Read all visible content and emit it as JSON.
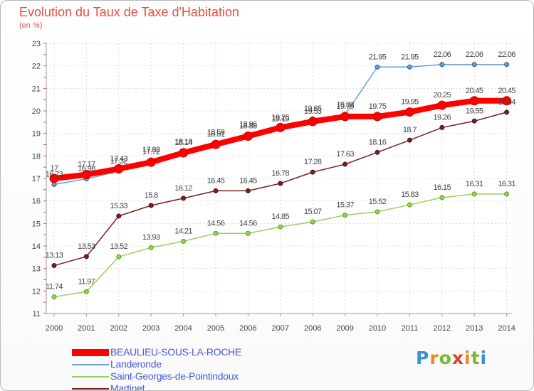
{
  "title": "Evolution du Taux de Taxe d'Habitation",
  "unit_label": "(en %)",
  "logo_text": "Proxiti",
  "chart_data": {
    "type": "line",
    "title": "Evolution du Taux de Taxe d'Habitation",
    "ylabel": "(en %)",
    "xlabel": "",
    "x": [
      "2000",
      "2001",
      "2002",
      "2003",
      "2004",
      "2005",
      "2006",
      "2007",
      "2008",
      "2009",
      "2010",
      "2011",
      "2012",
      "2013",
      "2014"
    ],
    "ylim": [
      11,
      23
    ],
    "yticks": [
      11,
      12,
      13,
      14,
      15,
      16,
      17,
      18,
      19,
      20,
      21,
      22,
      23
    ],
    "grid": true,
    "legend_position": "bottom-left",
    "series": [
      {
        "name": "BEAULIEU-SOUS-LA-ROCHE",
        "color": "#ff0000",
        "values": [
          17,
          17.17,
          17.43,
          17.72,
          18.14,
          18.51,
          18.88,
          19.26,
          19.53,
          19.75,
          19.75,
          19.95,
          20.25,
          20.45,
          20.45
        ],
        "labels": [
          "17",
          "17.17",
          "17.43",
          "17.72",
          "18.14",
          "18.51",
          "18.88",
          "19.26",
          "19.53",
          "19.75",
          "19.75",
          "19.95",
          "20.25",
          "20.45",
          "20.45"
        ]
      },
      {
        "name": "Landeronde",
        "color": "#6a9fd6",
        "values": [
          16.73,
          16.98,
          17.32,
          17.82,
          18.18,
          18.59,
          18.96,
          19.19,
          19.65,
          19.83,
          21.95,
          21.95,
          22.06,
          22.06,
          22.06
        ],
        "labels": [
          "16.73",
          "16.98",
          "17.32",
          "17.82",
          "18.18",
          "18.59",
          "18.96",
          "19.19",
          "19.65",
          "19.83",
          "21.95",
          "21.95",
          "22.06",
          "22.06",
          "22.06"
        ]
      },
      {
        "name": "Saint-Georges-de-Pointindoux",
        "color": "#99d05a",
        "values": [
          11.74,
          11.97,
          13.52,
          13.93,
          14.21,
          14.56,
          14.56,
          14.85,
          15.07,
          15.37,
          15.52,
          15.83,
          16.15,
          16.31,
          16.31
        ],
        "labels": [
          "11.74",
          "11.97",
          "13.52",
          "13.93",
          "14.21",
          "14.56",
          "14.56",
          "14.85",
          "15.07",
          "15.37",
          "15.52",
          "15.83",
          "16.15",
          "16.31",
          "16.31"
        ]
      },
      {
        "name": "Martinet",
        "color": "#7a2020",
        "values": [
          13.13,
          13.53,
          15.33,
          15.8,
          16.12,
          16.45,
          16.45,
          16.78,
          17.28,
          17.63,
          18.16,
          18.7,
          19.26,
          19.55,
          19.94
        ],
        "labels": [
          "13.13",
          "13.53",
          "15.33",
          "15.8",
          "16.12",
          "16.45",
          "16.45",
          "16.78",
          "17.28",
          "17.63",
          "18.16",
          "18.7",
          "19.26",
          "19.55",
          "19.94"
        ]
      }
    ]
  }
}
